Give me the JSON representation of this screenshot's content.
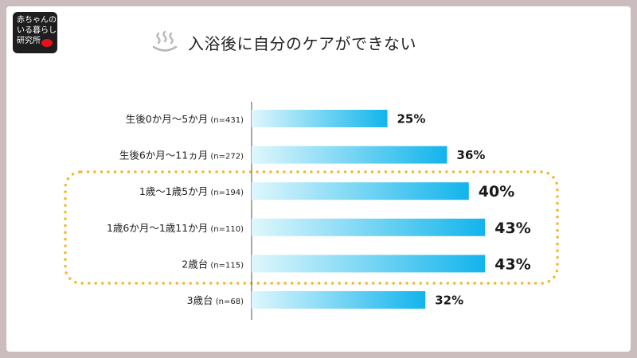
{
  "logo": {
    "lines": [
      "赤ちゃんの",
      "いる暮らし",
      "研究所"
    ]
  },
  "header": {
    "title": "入浴後に自分のケアができない",
    "icon": "hot-spring-icon"
  },
  "chart_data": {
    "type": "bar",
    "orientation": "horizontal",
    "title": "入浴後に自分のケアができない",
    "categories": [
      {
        "label": "生後0か月〜5か月",
        "n": "(n=431)"
      },
      {
        "label": "生後6か月〜11ヵ月",
        "n": "(n=272)"
      },
      {
        "label": "1歳〜1歳5か月",
        "n": "(n=194)"
      },
      {
        "label": "1歳6か月〜1歳11か月",
        "n": "(n=110)"
      },
      {
        "label": "2歳台",
        "n": "(n=115)"
      },
      {
        "label": "3歳台",
        "n": "(n=68)"
      }
    ],
    "values": [
      25,
      36,
      40,
      43,
      43,
      32
    ],
    "value_labels": [
      "25%",
      "36%",
      "40%",
      "43%",
      "43%",
      "32%"
    ],
    "highlighted": [
      2,
      3,
      4
    ],
    "xlim": [
      0,
      60
    ],
    "grid": false,
    "colors": {
      "bar_start": "#dff7fc",
      "bar_end": "#12b4ec",
      "highlight_border": "#f2b82b"
    }
  }
}
